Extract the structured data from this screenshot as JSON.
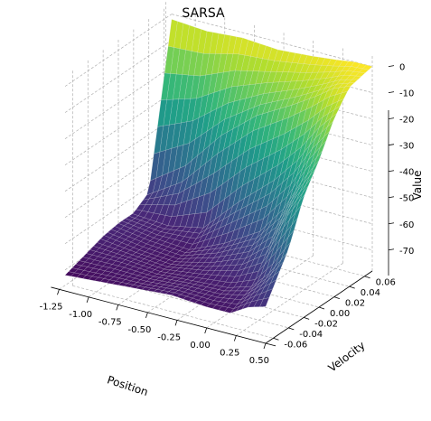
{
  "chart_data": {
    "type": "surface",
    "title": "SARSA",
    "xlabel": "Position",
    "ylabel": "Velocity",
    "zlabel": "Value",
    "xlim": [
      -1.2,
      0.5
    ],
    "ylim": [
      -0.07,
      0.07
    ],
    "zlim": [
      -78,
      4
    ],
    "x_ticks": [
      "-1.25",
      "-1.00",
      "-0.75",
      "-0.50",
      "-0.25",
      "0.00",
      "0.25",
      "0.50"
    ],
    "x_tick_values": [
      -1.25,
      -1.0,
      -0.75,
      -0.5,
      -0.25,
      0.0,
      0.25,
      0.5
    ],
    "y_ticks": [
      "-0.06",
      "-0.04",
      "-0.02",
      "0.00",
      "0.02",
      "0.04",
      "0.06"
    ],
    "y_tick_values": [
      -0.06,
      -0.04,
      -0.02,
      0.0,
      0.02,
      0.04,
      0.06
    ],
    "z_ticks": [
      "0",
      "-10",
      "-20",
      "-30",
      "-40",
      "-50",
      "-60",
      "-70"
    ],
    "z_tick_values": [
      0,
      -10,
      -20,
      -30,
      -40,
      -50,
      -60,
      -70
    ],
    "colormap": "viridis",
    "grid": true,
    "grid_positions": [
      -1.2,
      -0.9,
      -0.6,
      -0.3,
      0.0,
      0.2,
      0.35,
      0.5
    ],
    "grid_velocities": [
      -0.07,
      -0.04,
      -0.02,
      0.0,
      0.02,
      0.04,
      0.07
    ],
    "values": [
      [
        -72,
        -71,
        -70,
        -69,
        -70,
        -70,
        -66,
        -64
      ],
      [
        -69,
        -69,
        -70,
        -69,
        -68,
        -65,
        -58,
        -48
      ],
      [
        -67,
        -69,
        -70,
        -67,
        -62,
        -55,
        -42,
        -32
      ],
      [
        -66,
        -68,
        -69,
        -63,
        -55,
        -44,
        -32,
        -22
      ],
      [
        -66,
        -67,
        -64,
        -50,
        -38,
        -28,
        -18,
        -10
      ],
      [
        -62,
        -52,
        -36,
        -24,
        -16,
        -10,
        -5,
        -2
      ],
      [
        -2,
        -3,
        -2,
        -3,
        -2,
        -1,
        0,
        0
      ]
    ]
  }
}
